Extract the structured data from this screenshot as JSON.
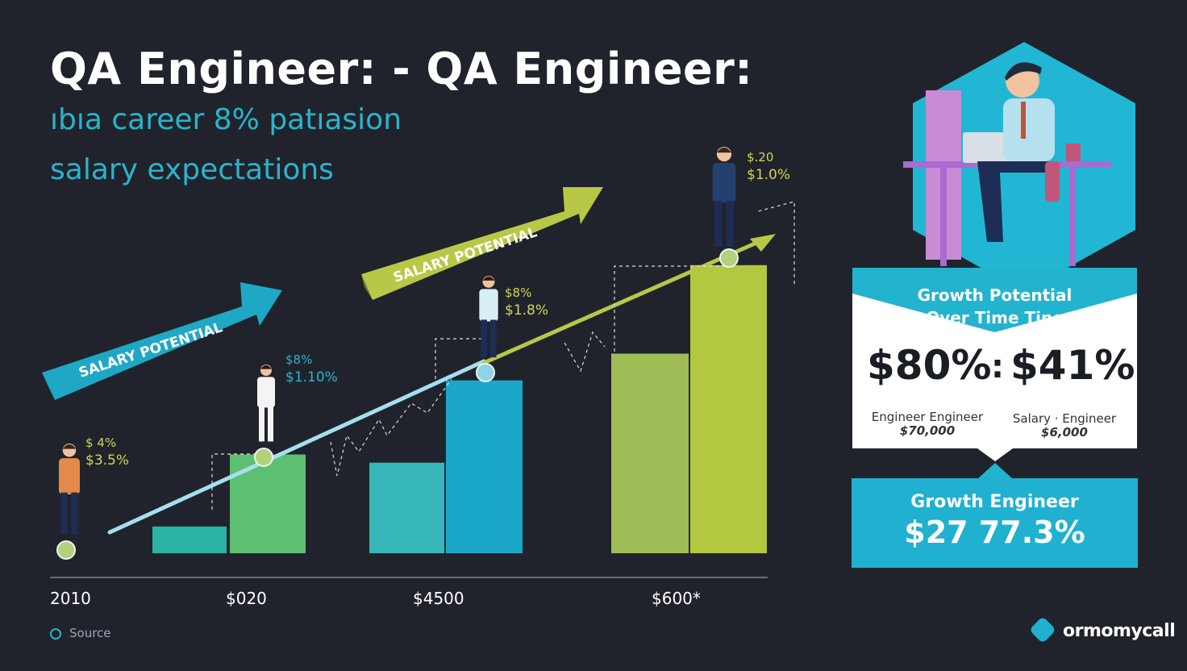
{
  "header": {
    "title": "QA Engineer: - QA Engineer:",
    "subtitle_line1": "ıbıa career 8% patıasion",
    "subtitle_line2": "salary expectations"
  },
  "chart_data": {
    "type": "bar",
    "x_tick_labels": [
      "2010",
      "$020",
      "$4500",
      "$600*"
    ],
    "bars": [
      {
        "value": 0.13,
        "color": "#2ab3a2"
      },
      {
        "value": 0.48,
        "color": "#5cbf72"
      },
      {
        "value": 0.44,
        "color": "#37b7b9"
      },
      {
        "value": 0.84,
        "color": "#1ba8c8"
      },
      {
        "value": 0.97,
        "color": "#9fbc57"
      },
      {
        "value": 1.4,
        "color": "#b3c740"
      }
    ],
    "ylim": [
      0,
      1.45
    ],
    "ribbons": [
      {
        "label": "SALARY POTENTIAL",
        "color": "#1fa8c6"
      },
      {
        "label": "SALARY POTENTIAL",
        "color": "#b8c846"
      }
    ],
    "milestones": [
      {
        "line1": "$ 4%",
        "line2": "$3.5%",
        "color": "#d4d45a"
      },
      {
        "line1": "$8%",
        "line2": "$1.10%",
        "color": "#2bb3cc"
      },
      {
        "line1": "$8%",
        "line2": "$1.8%",
        "color": "#d4d45a"
      },
      {
        "line1": "$.20",
        "line2": "$1.0%",
        "color": "#d4d45a"
      }
    ]
  },
  "growth_panel": {
    "title_line1": "Growth Potential",
    "title_line2": "Over Time Tine",
    "value_left": "$80%",
    "separator": ":",
    "value_right": "$41%",
    "caption_left": "Engineer Engineer",
    "caption_left_value": "$70,000",
    "caption_right": "Salary · Engineer",
    "caption_right_value": "$6,000"
  },
  "growth_engineer": {
    "title": "Growth Engineer",
    "value": "$27 77.3%"
  },
  "footer": {
    "source": "Source",
    "brand": "ormomycall"
  },
  "colors": {
    "background": "#20232b",
    "accent_blue": "#1fb1cf",
    "accent_green": "#b3c740"
  }
}
